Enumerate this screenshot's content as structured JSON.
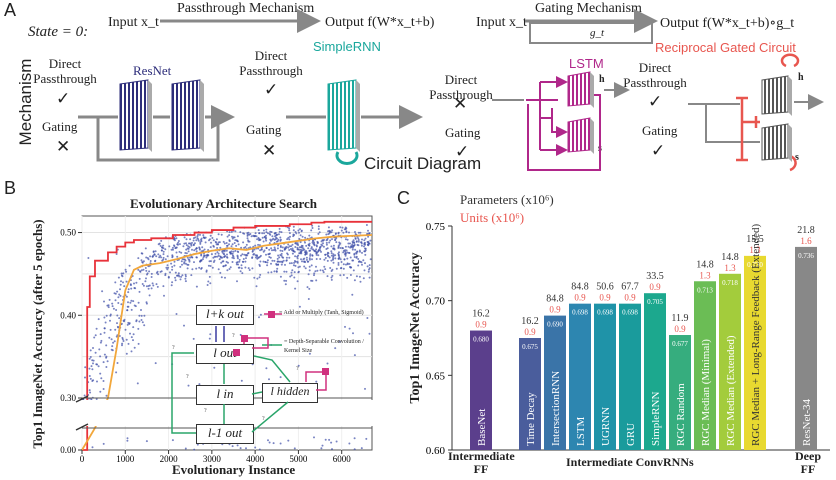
{
  "panel_a": {
    "letter": "A",
    "state": "State = 0:",
    "row_label": "Mechanism",
    "passthrough": {
      "input": "Input x_t",
      "title": "Passthrough Mechanism",
      "output": "Output f(W*x_t+b)"
    },
    "gating": {
      "input": "Input x_t",
      "title": "Gating Mechanism",
      "gate": "g_t",
      "output": "Output f(W*x_t+b)∘g_t"
    },
    "circuit_diagram": "Circuit Diagram",
    "direct_passthrough": "Direct Passthrough",
    "gating_label": "Gating",
    "check": "✓",
    "cross": "✕",
    "models": [
      {
        "name": "ResNet",
        "color": "#2d2d7a",
        "passthrough": "✓",
        "gating": "✕"
      },
      {
        "name": "SimpleRNN",
        "color": "#1aa79c",
        "passthrough": "✓",
        "gating": "✕"
      },
      {
        "name": "LSTM",
        "color": "#b0278a",
        "passthrough": "✕",
        "gating": "✓"
      },
      {
        "name": "Reciprocal Gated Circuit",
        "color": "#e8564f",
        "passthrough": "✓",
        "gating": "✓"
      }
    ],
    "h_label": "h",
    "s_label": "s"
  },
  "panel_b": {
    "letter": "B",
    "title": "Evolutionary Architecture Search",
    "ylabel": "Top1 ImageNet Accuracy (after 5 epochs)",
    "xlabel": "Evolutionary Instance",
    "xticks": [
      "0",
      "1000",
      "2000",
      "3000",
      "4000",
      "5000",
      "6000"
    ],
    "yticks_upper": [
      "0.30",
      "0.40",
      "0.50"
    ],
    "yticks_lower": [
      "0.00"
    ],
    "inset": {
      "nodes": [
        "l+k out",
        "l out",
        "l in",
        "l hidden",
        "l-1 out"
      ],
      "legend_add": "= Add or Multiply (Tanh, Sigmoid)",
      "legend_conv": "= Depth-Separable Convolution / Kernel Size",
      "small_label": "?"
    }
  },
  "panel_c": {
    "letter": "C",
    "legend_params": "Parameters (x10⁶)",
    "legend_units": "Units  (x10⁶)",
    "ylabel": "Top1 ImageNet Accuracy",
    "xgroups": [
      "Intermediate FF",
      "Intermediate ConvRNNs",
      "Deep FF"
    ],
    "colors": {
      "params": "#333333",
      "units": "#e8564f"
    }
  },
  "chart_data": [
    {
      "type": "scatter",
      "title": "Evolutionary Architecture Search",
      "xlabel": "Evolutionary Instance",
      "ylabel": "Top1 ImageNet Accuracy (after 5 epochs)",
      "xlim": [
        0,
        6700
      ],
      "ylim_upper": [
        0.3,
        0.52
      ],
      "ylim_lower": [
        0.0,
        0.02
      ],
      "series": [
        {
          "type": "step-line",
          "color": "#e8323a",
          "x": [
            0,
            120,
            180,
            300,
            600,
            800,
            1000,
            1200,
            1600,
            2100,
            2600,
            3000,
            3500,
            4000,
            4800,
            5300,
            5600,
            6700
          ],
          "y": [
            0.0,
            0.41,
            0.447,
            0.466,
            0.476,
            0.483,
            0.488,
            0.491,
            0.493,
            0.497,
            0.5,
            0.503,
            0.506,
            0.508,
            0.51,
            0.512,
            0.513,
            0.513
          ]
        },
        {
          "type": "line",
          "color": "#f2a73b",
          "x": [
            0,
            300,
            600,
            800,
            1000,
            1200,
            1400,
            1800,
            2200,
            2600,
            3000,
            3400,
            3800,
            4200,
            4600,
            5000,
            5400,
            5800,
            6200,
            6700
          ],
          "y": [
            0.0,
            0.02,
            0.3,
            0.36,
            0.43,
            0.455,
            0.46,
            0.463,
            0.468,
            0.474,
            0.478,
            0.481,
            0.479,
            0.484,
            0.487,
            0.49,
            0.493,
            0.495,
            0.496,
            0.497
          ]
        }
      ]
    },
    {
      "type": "bar",
      "categories": [
        "BaseNet",
        "Time Decay",
        "IntersectionRNN",
        "LSTM",
        "UGRNN",
        "GRU",
        "SimpleRNN",
        "RGC Random",
        "RGC Median (Minimal)",
        "RGC Median (Extended)",
        "RGC Median + Long-Range Feedback (Extended)",
        "ResNet-34"
      ],
      "values": [
        0.68,
        0.675,
        0.69,
        0.698,
        0.698,
        0.698,
        0.705,
        0.677,
        0.713,
        0.718,
        0.73,
        0.736
      ],
      "value_labels": [
        "0.680",
        "0.675",
        "0.690",
        "0.698",
        "0.698",
        "0.698",
        "0.705",
        "0.677",
        "0.713",
        "0.718",
        "0.730",
        "0.736"
      ],
      "params": [
        "16.2",
        "16.2",
        "84.8",
        "84.8",
        "50.6",
        "67.7",
        "33.5",
        "11.9",
        "14.8",
        "14.8",
        "15.5",
        "21.8"
      ],
      "units": [
        "0.9",
        "0.9",
        "0.9",
        "0.9",
        "0.9",
        "0.9",
        "0.9",
        "0.9",
        "1.3",
        "1.3",
        "1.3",
        "1.6"
      ],
      "colors": [
        "#5b3f8c",
        "#4a5d9c",
        "#3a74a8",
        "#2d86b0",
        "#1f93a8",
        "#1a9b9c",
        "#1ca88e",
        "#36ad7e",
        "#6bbd55",
        "#a3cc3c",
        "#e8d930",
        "#888888"
      ],
      "ylabel": "Top1 ImageNet Accuracy",
      "ylim": [
        0.6,
        0.75
      ],
      "yticks": [
        "0.60",
        "0.65",
        "0.70",
        "0.75"
      ]
    }
  ]
}
